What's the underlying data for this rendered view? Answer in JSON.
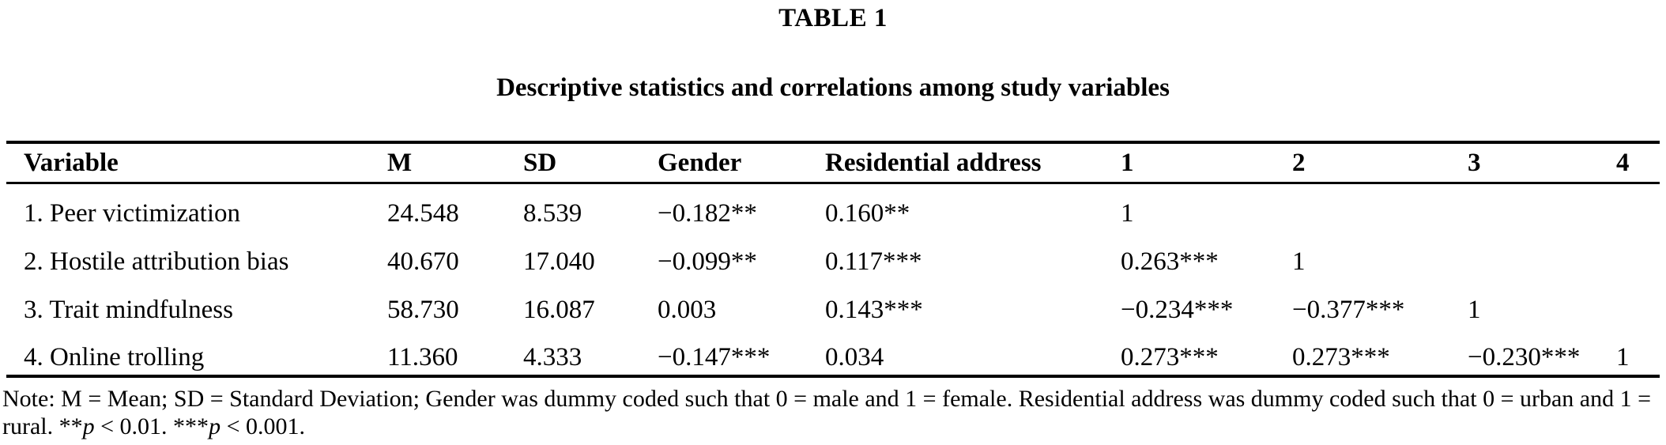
{
  "paper_table": {
    "label": "TABLE 1",
    "caption": "Descriptive statistics and correlations among study variables",
    "columns": [
      "Variable",
      "M",
      "SD",
      "Gender",
      "Residential address",
      "1",
      "2",
      "3",
      "4"
    ],
    "rows": [
      [
        "1. Peer victimization",
        "24.548",
        "8.539",
        "−0.182**",
        "0.160**",
        "1",
        "",
        "",
        ""
      ],
      [
        "2. Hostile attribution bias",
        "40.670",
        "17.040",
        "−0.099**",
        "0.117***",
        "0.263***",
        "1",
        "",
        ""
      ],
      [
        "3. Trait mindfulness",
        "58.730",
        "16.087",
        "0.003",
        "0.143***",
        "−0.234***",
        "−0.377***",
        "1",
        ""
      ],
      [
        "4. Online trolling",
        "11.360",
        "4.333",
        "−0.147***",
        "0.034",
        "0.273***",
        "0.273***",
        "−0.230***",
        "1"
      ]
    ],
    "note_segments": [
      {
        "text": "Note: M = Mean; SD = Standard Deviation; Gender was dummy coded such that 0 = male and 1 = female. Residential address was dummy coded such that 0 = urban and 1 = rural. **",
        "italic": false
      },
      {
        "text": "p",
        "italic": true
      },
      {
        "text": " < 0.01. ***",
        "italic": false
      },
      {
        "text": "p",
        "italic": true
      },
      {
        "text": " < 0.001.",
        "italic": false
      }
    ],
    "colors": {
      "text": "#000000",
      "background": "#ffffff",
      "rule": "#000000"
    }
  }
}
